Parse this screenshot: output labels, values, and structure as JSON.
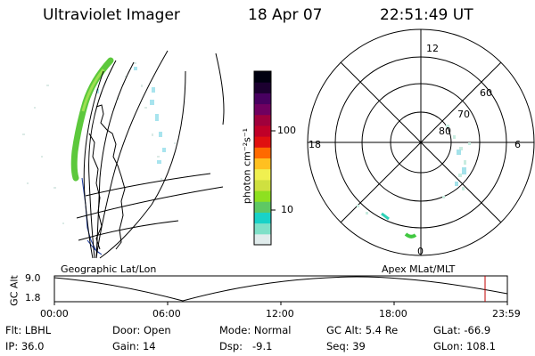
{
  "header": {
    "instrument": "Ultraviolet Imager",
    "date": "18 Apr 07",
    "time": "22:51:49 UT"
  },
  "map_panel": {
    "label": "Geographic Lat/Lon"
  },
  "colorbar": {
    "unit_label": "photon cm⁻²s⁻¹",
    "ticks": [
      "100",
      "10"
    ],
    "scale": "log",
    "colors": [
      "#e0ecec",
      "#7fe0c8",
      "#19d2c8",
      "#5ec864",
      "#8ee020",
      "#cfe040",
      "#f0f050",
      "#ffc020",
      "#ff6a00",
      "#e01010",
      "#c00028",
      "#a0003c",
      "#700060",
      "#480060",
      "#1c0030",
      "#000010"
    ]
  },
  "polar_panel": {
    "label": "Apex MLat/MLT",
    "mlt_labels": {
      "top": "12",
      "left": "18",
      "right": "6",
      "bottom": "0"
    },
    "lat_labels": [
      "60",
      "70",
      "80"
    ]
  },
  "timeline": {
    "ylabel": "GC Alt",
    "y_ticks": [
      "9.0",
      "1.8"
    ],
    "x_ticks": [
      "00:00",
      "06:00",
      "12:00",
      "18:00",
      "23:59"
    ],
    "marker_color": "#c00000"
  },
  "status": {
    "row1": [
      {
        "key": "flt",
        "text": "Flt: LBHL"
      },
      {
        "key": "door",
        "text": "Door: Open"
      },
      {
        "key": "mode",
        "text": "Mode: Normal"
      },
      {
        "key": "gcalt",
        "text": "GC Alt: 5.4 Re"
      },
      {
        "key": "glat",
        "text": "GLat: -66.9"
      }
    ],
    "row2": [
      {
        "key": "ip",
        "text": "IP: 36.0"
      },
      {
        "key": "gain",
        "text": "Gain: 14"
      },
      {
        "key": "dsp",
        "text": "Dsp:   -9.1"
      },
      {
        "key": "seq",
        "text": "Seq: 39"
      },
      {
        "key": "glon",
        "text": "GLon: 108.1"
      }
    ]
  }
}
